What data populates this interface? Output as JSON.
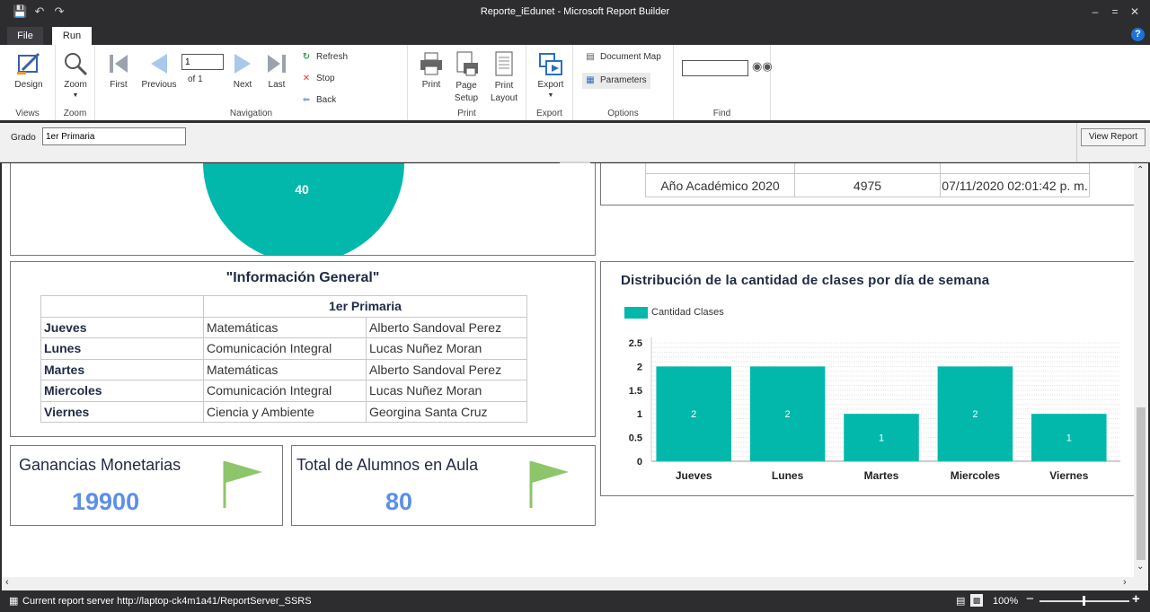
{
  "window": {
    "title": "Reporte_iEdunet - Microsoft Report Builder"
  },
  "tabs": {
    "file": "File",
    "run": "Run"
  },
  "ribbon": {
    "views": {
      "label": "Views",
      "design": "Design"
    },
    "zoom": {
      "label": "Zoom",
      "zoom": "Zoom"
    },
    "navigation": {
      "label": "Navigation",
      "first": "First",
      "previous": "Previous",
      "page_value": "1",
      "of_label": "of",
      "total_pages": "1",
      "next": "Next",
      "last": "Last",
      "refresh": "Refresh",
      "stop": "Stop",
      "back": "Back"
    },
    "print": {
      "label": "Print",
      "print": "Print",
      "page_setup_1": "Page",
      "page_setup_2": "Setup",
      "print_layout_1": "Print",
      "print_layout_2": "Layout"
    },
    "export": {
      "label": "Export",
      "export": "Export"
    },
    "options": {
      "label": "Options",
      "document_map": "Document Map",
      "parameters": "Parameters"
    },
    "find": {
      "label": "Find",
      "value": ""
    }
  },
  "params": {
    "grado_label": "Grado",
    "grado_value": "1er Primaria",
    "view_report": "View Report"
  },
  "report": {
    "pie_label": "40",
    "year_table": {
      "year": "Año Académico 2020",
      "code": "4975",
      "timestamp": "07/11/2020 02:01:42 p. m."
    },
    "info": {
      "title": "\"Información General\"",
      "grade": "1er Primaria",
      "rows": [
        {
          "day": "Jueves",
          "subject": "Matemáticas",
          "teacher": "Alberto Sandoval Perez"
        },
        {
          "day": "Lunes",
          "subject": "Comunicación Integral",
          "teacher": "Lucas Nuñez Moran"
        },
        {
          "day": "Martes",
          "subject": "Matemáticas",
          "teacher": "Alberto Sandoval Perez"
        },
        {
          "day": "Miercoles",
          "subject": "Comunicación Integral",
          "teacher": "Lucas Nuñez Moran"
        },
        {
          "day": "Viernes",
          "subject": "Ciencia y Ambiente",
          "teacher": "Georgina Santa Cruz"
        }
      ]
    },
    "kpi_earnings": {
      "title": "Ganancias Monetarias",
      "value": "19900"
    },
    "kpi_students": {
      "title": "Total de Alumnos en Aula",
      "value": "80"
    }
  },
  "chart_data": {
    "type": "bar",
    "title": "Distribución de la cantidad de clases por día de semana",
    "categories": [
      "Jueves",
      "Lunes",
      "Martes",
      "Miercoles",
      "Viernes"
    ],
    "series": [
      {
        "name": "Cantidad Clases",
        "values": [
          2,
          2,
          1,
          2,
          1
        ]
      }
    ],
    "yticks": [
      "0",
      "0.5",
      "1",
      "1.5",
      "2",
      "2.5"
    ],
    "ylim": [
      0,
      2.5
    ],
    "legend": "top-left",
    "color": "#01b8aa",
    "grid": true
  },
  "status": {
    "server": "Current report server http://laptop-ck4m1a41/ReportServer_SSRS",
    "zoom": "100%"
  },
  "colors": {
    "accent": "#01b8aa",
    "kpi": "#5b8fe8",
    "flag": "#8dc56b"
  }
}
